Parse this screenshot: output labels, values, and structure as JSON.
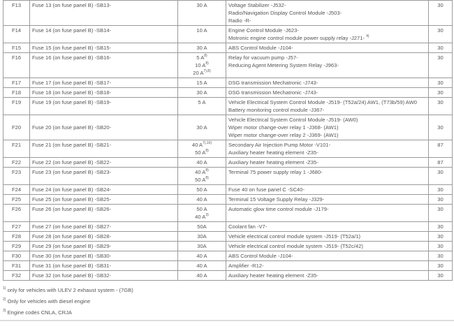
{
  "table": {
    "rows": [
      {
        "id": "F13",
        "name": "Fuse 13 (on fuse panel B) -SB13-",
        "amps": [
          {
            "t": "30 A"
          }
        ],
        "consumers": [
          {
            "t": "Voltage Stabilizer -J532-"
          },
          {
            "t": "Radio/Navigation Display Control Module -J503-"
          },
          {
            "t": "Radio -R-"
          }
        ],
        "terminal": "30"
      },
      {
        "id": "F14",
        "name": "Fuse 14 (on fuse panel B) -SB14-",
        "amps": [
          {
            "t": "10 A"
          }
        ],
        "consumers": [
          {
            "t": "Engine Control Module -J623-"
          },
          {
            "t": "Motronic engine control module power supply relay -J271- ",
            "sup": "4)"
          }
        ],
        "terminal": "30"
      },
      {
        "id": "F15",
        "name": "Fuse 15 (on fuse panel B) -SB15-",
        "amps": [
          {
            "t": "30 A"
          }
        ],
        "consumers": [
          {
            "t": "ABS Control Module -J104-"
          }
        ],
        "terminal": "30"
      },
      {
        "id": "F16",
        "name": "Fuse 16 (on fuse panel B) -SB16-",
        "amps": [
          {
            "t": "5 A",
            "sup": "8)"
          },
          {
            "t": "10 A",
            "sup": "8)"
          },
          {
            "t": "20 A",
            "sup": "7),8)"
          }
        ],
        "consumers": [
          {
            "t": "Relay for vacuum pump -J57-"
          },
          {
            "t": "Reducing Agent Metering System Relay -J963-"
          }
        ],
        "terminal": "30"
      },
      {
        "id": "F17",
        "name": "Fuse 17 (on fuse panel B) -SB17-",
        "amps": [
          {
            "t": "15 A"
          }
        ],
        "consumers": [
          {
            "t": "DSG transmission Mechatronic -J743-"
          }
        ],
        "terminal": "30"
      },
      {
        "id": "F18",
        "name": "Fuse 18 (on fuse panel B) -SB18-",
        "amps": [
          {
            "t": "30 A"
          }
        ],
        "consumers": [
          {
            "t": "DSG transmission Mechatronic -J743-"
          }
        ],
        "terminal": "30"
      },
      {
        "id": "F19",
        "name": "Fuse 19 (on fuse panel B) -SB19-",
        "amps": [
          {
            "t": "5 A"
          }
        ],
        "consumers": [
          {
            "t": "Vehicle Electrical System Control Module -J519- (T52a/24) AW1, (T73b/59) AW0"
          },
          {
            "t": "Battery monitoring control module -J367-"
          }
        ],
        "terminal": "30"
      },
      {
        "id": "F20",
        "name": "Fuse 20 (on fuse panel B) -SB20-",
        "amps": [
          {
            "t": "30 A"
          }
        ],
        "consumers": [
          {
            "t": "Vehicle Electrical System Control Module -J519- (AW0)"
          },
          {
            "t": "Wiper motor change-over relay 1 -J368- (AW1)"
          },
          {
            "t": "Wiper motor change-over relay 2 -J369- (AW1)"
          }
        ],
        "terminal": "30",
        "middle": true
      },
      {
        "id": "F21",
        "name": "Fuse 21 (on fuse panel B) -SB21-",
        "amps": [
          {
            "t": "40 A",
            "sup": "7),10)"
          },
          {
            "t": "50 A",
            "sup": "8)"
          }
        ],
        "consumers": [
          {
            "t": "Secondary Air Injection Pump Motor -V101-"
          },
          {
            "t": "Auxiliary heater heating element -Z35-"
          }
        ],
        "terminal": "87"
      },
      {
        "id": "F22",
        "name": "Fuse 22 (on fuse panel B) -SB22-",
        "amps": [
          {
            "t": "40 A"
          }
        ],
        "consumers": [
          {
            "t": "Auxiliary heater heating element -Z35-"
          }
        ],
        "terminal": "87"
      },
      {
        "id": "F23",
        "name": "Fuse 23 (on fuse panel B) -SB23-",
        "amps": [
          {
            "t": "40 A",
            "sup": "8)"
          },
          {
            "t": "50 A",
            "sup": "8)"
          }
        ],
        "consumers": [
          {
            "t": "Terminal 75 power supply relay 1 -J680-"
          }
        ],
        "terminal": "30"
      },
      {
        "id": "F24",
        "name": "Fuse 24 (on fuse panel B) -SB24-",
        "amps": [
          {
            "t": "50 A"
          }
        ],
        "consumers": [
          {
            "t": "Fuse 40 on fuse panel C -SC40-"
          }
        ],
        "terminal": "30"
      },
      {
        "id": "F25",
        "name": "Fuse 25 (on fuse panel B) -SB25-",
        "amps": [
          {
            "t": "40 A"
          }
        ],
        "consumers": [
          {
            "t": "Terminal 15 Voltage Supply Relay -J329-"
          }
        ],
        "terminal": "30"
      },
      {
        "id": "F26",
        "name": "Fuse 26 (on fuse panel B) -SB26-",
        "amps": [
          {
            "t": "50 A"
          },
          {
            "t": "40 A",
            "sup": "3)"
          }
        ],
        "consumers": [
          {
            "t": "Automatic glow time control module -J179-"
          }
        ],
        "terminal": "30"
      },
      {
        "id": "F27",
        "name": "Fuse 27 (on fuse panel B) -SB27-",
        "amps": [
          {
            "t": "50A"
          }
        ],
        "consumers": [
          {
            "t": "Coolant fan -V7-"
          }
        ],
        "terminal": "30"
      },
      {
        "id": "F28",
        "name": "Fuse 28 (on fuse panel B) -SB28-",
        "amps": [
          {
            "t": "30A"
          }
        ],
        "consumers": [
          {
            "t": "Vehicle electrical control module system -J519- (T52a/1)"
          }
        ],
        "terminal": "30"
      },
      {
        "id": "F29",
        "name": "Fuse 29 (on fuse panel B) -SB29-",
        "amps": [
          {
            "t": "30A"
          }
        ],
        "consumers": [
          {
            "t": "Vehicle electrical control module system -J519- (T52c/42)"
          }
        ],
        "terminal": "30"
      },
      {
        "id": "F30",
        "name": "Fuse 30 (on fuse panel B) -SB30-",
        "amps": [
          {
            "t": "40 A"
          }
        ],
        "consumers": [
          {
            "t": "ABS Control Module -J104-"
          }
        ],
        "terminal": "30"
      },
      {
        "id": "F31",
        "name": "Fuse 31 (on fuse panel B) -SB31-",
        "amps": [
          {
            "t": "40 A"
          }
        ],
        "consumers": [
          {
            "t": "Amplifier -R12-"
          }
        ],
        "terminal": "30"
      },
      {
        "id": "F32",
        "name": "Fuse 32 (on fuse panel B) -SB32-",
        "amps": [
          {
            "t": "40 A"
          }
        ],
        "consumers": [
          {
            "t": "Auxiliary heater heating element -Z35-"
          }
        ],
        "terminal": "30"
      }
    ]
  },
  "footnotes": [
    {
      "sup": "1)",
      "text": " only for vehicles with ULEV 2 exhaust system - (7GB)"
    },
    {
      "sup": "2)",
      "text": " Only for vehicles with diesel engine"
    },
    {
      "sup": "3)",
      "text": " Engine codes CNLA, CRJA"
    }
  ]
}
